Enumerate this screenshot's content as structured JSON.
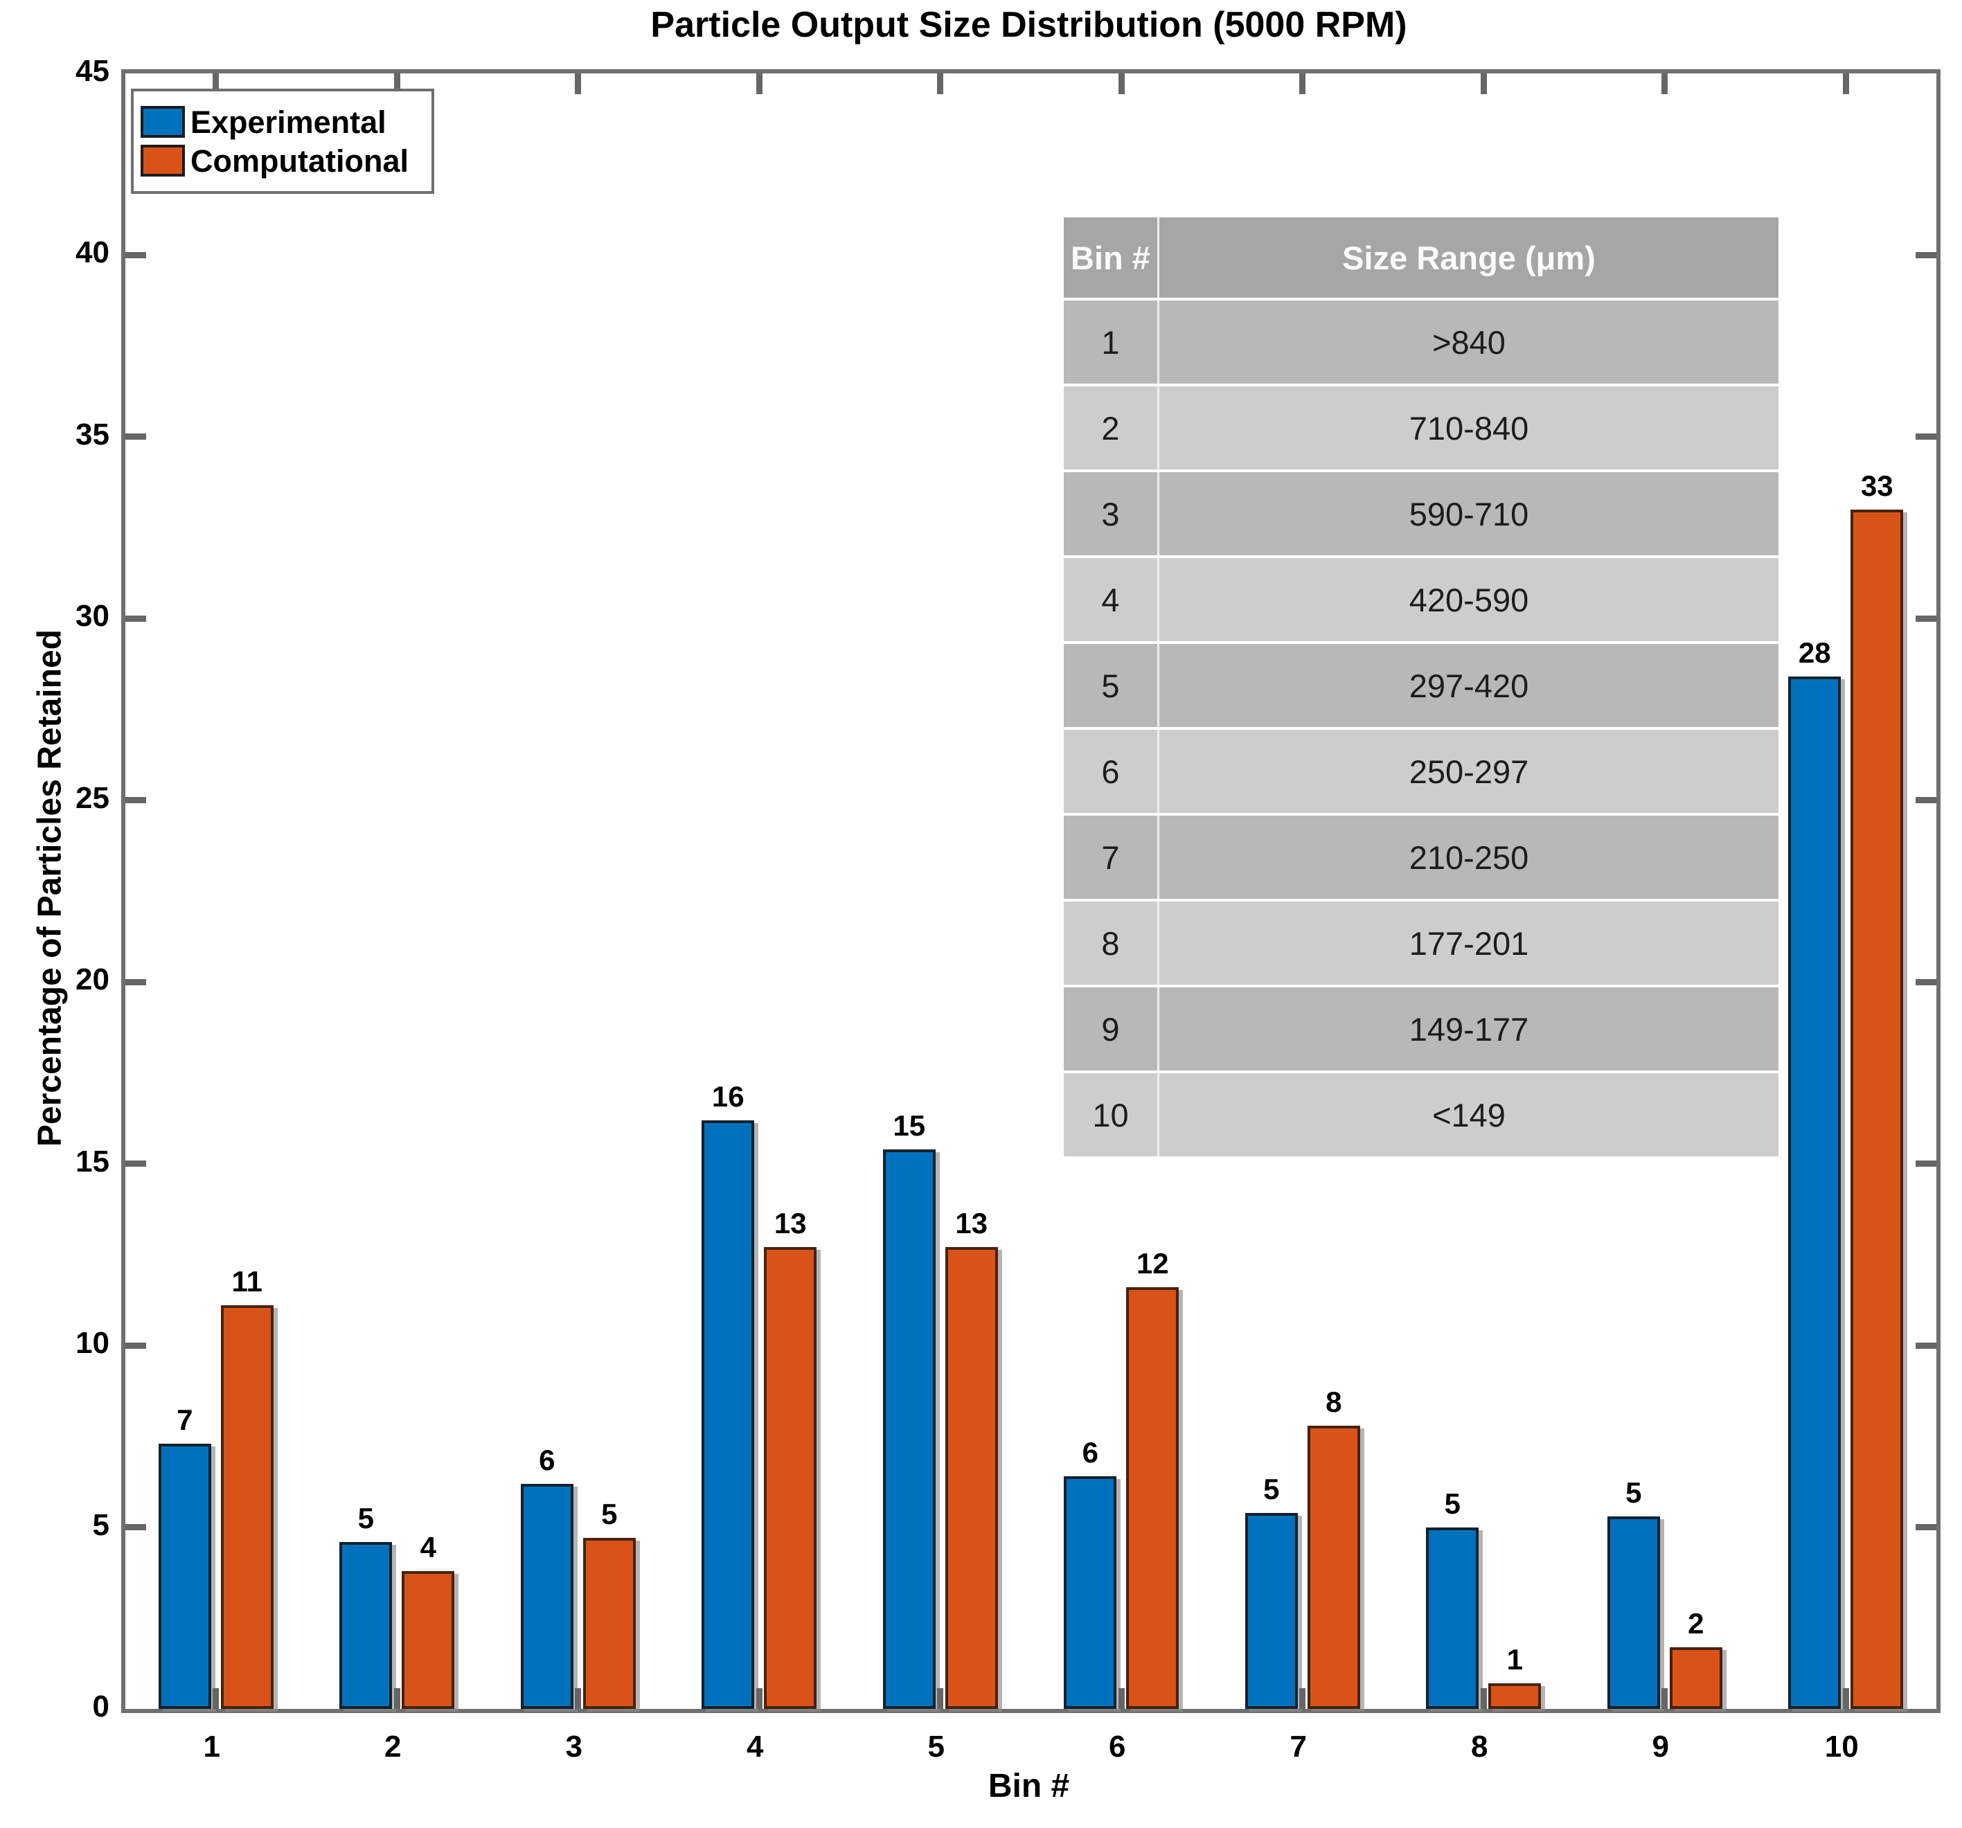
{
  "title": "Particle Output Size Distribution (5000 RPM)",
  "chart_data": {
    "type": "bar",
    "title": "Particle Output Size Distribution (5000 RPM)",
    "xlabel": "Bin #",
    "ylabel": "Percentage of Particles Retained",
    "categories": [
      "1",
      "2",
      "3",
      "4",
      "5",
      "6",
      "7",
      "8",
      "9",
      "10"
    ],
    "series": [
      {
        "name": "Experimental",
        "color": "#0072BD",
        "edge_color": "#14212d",
        "labels": [
          7,
          5,
          6,
          16,
          15,
          6,
          5,
          5,
          5,
          28
        ],
        "values": [
          7.3,
          4.6,
          6.2,
          16.2,
          15.4,
          6.4,
          5.4,
          5.0,
          5.3,
          28.4
        ]
      },
      {
        "name": "Computational",
        "color": "#D95319",
        "edge_color": "#47220d",
        "labels": [
          11,
          4,
          5,
          13,
          13,
          12,
          8,
          1,
          2,
          33
        ],
        "values": [
          11.1,
          3.8,
          4.7,
          12.7,
          12.7,
          11.6,
          7.8,
          0.7,
          1.7,
          33.0
        ]
      }
    ],
    "ylim": [
      0,
      45
    ],
    "yticks": [
      0,
      5,
      10,
      15,
      20,
      25,
      30,
      35,
      40,
      45
    ],
    "grid": false,
    "legend_position": "top-left-inside",
    "legend_entries": [
      "Experimental",
      "Computational"
    ]
  },
  "inset_table": {
    "headers": [
      "Bin #",
      "Size Range (μm)"
    ],
    "rows": [
      [
        "1",
        ">840"
      ],
      [
        "2",
        "710-840"
      ],
      [
        "3",
        "590-710"
      ],
      [
        "4",
        "420-590"
      ],
      [
        "5",
        "297-420"
      ],
      [
        "6",
        "250-297"
      ],
      [
        "7",
        "210-250"
      ],
      [
        "8",
        "177-201"
      ],
      [
        "9",
        "149-177"
      ],
      [
        "10",
        "<149"
      ]
    ],
    "header_bg": "#a6a6a6",
    "row_bg_odd": "#b8b8b8",
    "row_bg_even": "#cdcdcd"
  },
  "axis_color": "#6f6f6f"
}
